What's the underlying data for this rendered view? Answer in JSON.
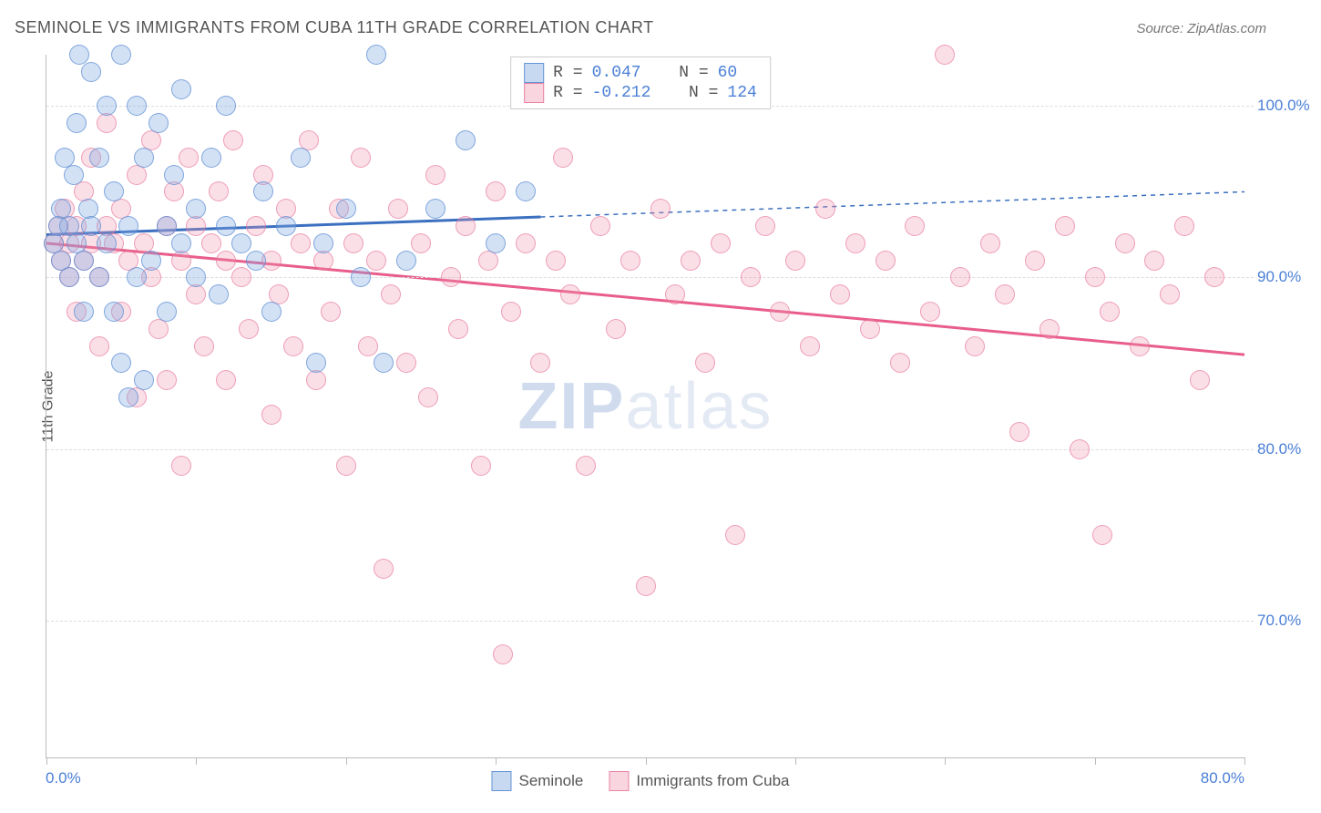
{
  "header": {
    "title": "SEMINOLE VS IMMIGRANTS FROM CUBA 11TH GRADE CORRELATION CHART",
    "source": "Source: ZipAtlas.com"
  },
  "axes": {
    "ylabel": "11th Grade",
    "xmin": 0.0,
    "xmax": 80.0,
    "ymin": 62.0,
    "ymax": 103.0,
    "xtick_label_min": "0.0%",
    "xtick_label_max": "80.0%",
    "xticks": [
      0,
      10,
      20,
      30,
      40,
      50,
      60,
      70,
      80
    ],
    "yticks": [
      70.0,
      80.0,
      90.0,
      100.0
    ],
    "ytick_labels": [
      "70.0%",
      "80.0%",
      "90.0%",
      "100.0%"
    ],
    "grid_color": "#dddddd",
    "axis_color": "#bbbbbb",
    "label_color": "#555555",
    "tick_label_color": "#4a7fd6",
    "label_fontsize": 16,
    "tick_label_fontsize": 17
  },
  "series": {
    "a": {
      "name": "Seminole",
      "color_fill": "rgba(130,170,225,0.35)",
      "color_stroke": "rgba(90,140,210,0.7)",
      "marker_size": 22,
      "R": "0.047",
      "N": "60",
      "trend": {
        "y_at_xmin": 92.5,
        "y_at_xmax": 95.0,
        "solid_until_x": 33.0,
        "color": "#3b6fc0",
        "width_solid": 3,
        "width_dash": 1.5
      },
      "points": [
        [
          0.5,
          92
        ],
        [
          0.8,
          93
        ],
        [
          1.0,
          94
        ],
        [
          1.0,
          91
        ],
        [
          1.2,
          97
        ],
        [
          1.5,
          93
        ],
        [
          1.5,
          90
        ],
        [
          1.8,
          96
        ],
        [
          2.0,
          92
        ],
        [
          2.0,
          99
        ],
        [
          2.2,
          103
        ],
        [
          2.5,
          91
        ],
        [
          2.5,
          88
        ],
        [
          2.8,
          94
        ],
        [
          3.0,
          93
        ],
        [
          3.0,
          102
        ],
        [
          3.5,
          97
        ],
        [
          3.5,
          90
        ],
        [
          4.0,
          100
        ],
        [
          4.0,
          92
        ],
        [
          4.5,
          88
        ],
        [
          4.5,
          95
        ],
        [
          5.0,
          103
        ],
        [
          5.0,
          85
        ],
        [
          5.5,
          93
        ],
        [
          6.0,
          90
        ],
        [
          6.0,
          100
        ],
        [
          6.5,
          97
        ],
        [
          6.5,
          84
        ],
        [
          7.0,
          91
        ],
        [
          7.5,
          99
        ],
        [
          8.0,
          93
        ],
        [
          8.0,
          88
        ],
        [
          8.5,
          96
        ],
        [
          9.0,
          92
        ],
        [
          9.0,
          101
        ],
        [
          10.0,
          90
        ],
        [
          10.0,
          94
        ],
        [
          11.0,
          97
        ],
        [
          11.5,
          89
        ],
        [
          12.0,
          93
        ],
        [
          12.0,
          100
        ],
        [
          13.0,
          92
        ],
        [
          14.0,
          91
        ],
        [
          14.5,
          95
        ],
        [
          15.0,
          88
        ],
        [
          16.0,
          93
        ],
        [
          17.0,
          97
        ],
        [
          18.0,
          85
        ],
        [
          18.5,
          92
        ],
        [
          20.0,
          94
        ],
        [
          21.0,
          90
        ],
        [
          22.0,
          103
        ],
        [
          24.0,
          91
        ],
        [
          26.0,
          94
        ],
        [
          28.0,
          98
        ],
        [
          30.0,
          92
        ],
        [
          32.0,
          95
        ],
        [
          22.5,
          85
        ],
        [
          5.5,
          83
        ]
      ]
    },
    "b": {
      "name": "Immigrants from Cuba",
      "color_fill": "rgba(240,150,175,0.30)",
      "color_stroke": "rgba(230,110,150,0.6)",
      "marker_size": 22,
      "R": "-0.212",
      "N": "124",
      "trend": {
        "y_at_xmin": 92.0,
        "y_at_xmax": 85.5,
        "solid_until_x": 80.0,
        "color": "#e85d8a",
        "width_solid": 3,
        "width_dash": 0
      },
      "points": [
        [
          0.5,
          92
        ],
        [
          0.8,
          93
        ],
        [
          1.0,
          91
        ],
        [
          1.2,
          94
        ],
        [
          1.5,
          92
        ],
        [
          1.5,
          90
        ],
        [
          2.0,
          93
        ],
        [
          2.0,
          88
        ],
        [
          2.5,
          95
        ],
        [
          2.5,
          91
        ],
        [
          3.0,
          92
        ],
        [
          3.0,
          97
        ],
        [
          3.5,
          90
        ],
        [
          3.5,
          86
        ],
        [
          4.0,
          93
        ],
        [
          4.0,
          99
        ],
        [
          4.5,
          92
        ],
        [
          5.0,
          88
        ],
        [
          5.0,
          94
        ],
        [
          5.5,
          91
        ],
        [
          6.0,
          96
        ],
        [
          6.0,
          83
        ],
        [
          6.5,
          92
        ],
        [
          7.0,
          90
        ],
        [
          7.0,
          98
        ],
        [
          7.5,
          87
        ],
        [
          8.0,
          93
        ],
        [
          8.0,
          84
        ],
        [
          8.5,
          95
        ],
        [
          9.0,
          79
        ],
        [
          9.0,
          91
        ],
        [
          9.5,
          97
        ],
        [
          10.0,
          89
        ],
        [
          10.0,
          93
        ],
        [
          10.5,
          86
        ],
        [
          11.0,
          92
        ],
        [
          11.5,
          95
        ],
        [
          12.0,
          84
        ],
        [
          12.0,
          91
        ],
        [
          12.5,
          98
        ],
        [
          13.0,
          90
        ],
        [
          13.5,
          87
        ],
        [
          14.0,
          93
        ],
        [
          14.5,
          96
        ],
        [
          15.0,
          82
        ],
        [
          15.0,
          91
        ],
        [
          15.5,
          89
        ],
        [
          16.0,
          94
        ],
        [
          16.5,
          86
        ],
        [
          17.0,
          92
        ],
        [
          17.5,
          98
        ],
        [
          18.0,
          84
        ],
        [
          18.5,
          91
        ],
        [
          19.0,
          88
        ],
        [
          19.5,
          94
        ],
        [
          20.0,
          79
        ],
        [
          20.5,
          92
        ],
        [
          21.0,
          97
        ],
        [
          21.5,
          86
        ],
        [
          22.0,
          91
        ],
        [
          22.5,
          73
        ],
        [
          23.0,
          89
        ],
        [
          23.5,
          94
        ],
        [
          24.0,
          85
        ],
        [
          25.0,
          92
        ],
        [
          25.5,
          83
        ],
        [
          26.0,
          96
        ],
        [
          27.0,
          90
        ],
        [
          27.5,
          87
        ],
        [
          28.0,
          93
        ],
        [
          29.0,
          79
        ],
        [
          29.5,
          91
        ],
        [
          30.0,
          95
        ],
        [
          30.5,
          68
        ],
        [
          31.0,
          88
        ],
        [
          32.0,
          92
        ],
        [
          33.0,
          85
        ],
        [
          34.0,
          91
        ],
        [
          34.5,
          97
        ],
        [
          35.0,
          89
        ],
        [
          36.0,
          79
        ],
        [
          37.0,
          93
        ],
        [
          38.0,
          87
        ],
        [
          39.0,
          91
        ],
        [
          40.0,
          72
        ],
        [
          41.0,
          94
        ],
        [
          42.0,
          89
        ],
        [
          43.0,
          91
        ],
        [
          44.0,
          85
        ],
        [
          45.0,
          92
        ],
        [
          46.0,
          75
        ],
        [
          47.0,
          90
        ],
        [
          48.0,
          93
        ],
        [
          49.0,
          88
        ],
        [
          50.0,
          91
        ],
        [
          51.0,
          86
        ],
        [
          52.0,
          94
        ],
        [
          53.0,
          89
        ],
        [
          54.0,
          92
        ],
        [
          55.0,
          87
        ],
        [
          56.0,
          91
        ],
        [
          57.0,
          85
        ],
        [
          58.0,
          93
        ],
        [
          59.0,
          88
        ],
        [
          60.0,
          103
        ],
        [
          61.0,
          90
        ],
        [
          62.0,
          86
        ],
        [
          63.0,
          92
        ],
        [
          64.0,
          89
        ],
        [
          65.0,
          81
        ],
        [
          66.0,
          91
        ],
        [
          67.0,
          87
        ],
        [
          68.0,
          93
        ],
        [
          69.0,
          80
        ],
        [
          70.0,
          90
        ],
        [
          70.5,
          75
        ],
        [
          71.0,
          88
        ],
        [
          72.0,
          92
        ],
        [
          73.0,
          86
        ],
        [
          74.0,
          91
        ],
        [
          75.0,
          89
        ],
        [
          76.0,
          93
        ],
        [
          77.0,
          84
        ],
        [
          78.0,
          90
        ]
      ]
    }
  },
  "legend_top": {
    "r_label": "R =",
    "n_label": "N ="
  },
  "watermark": {
    "bold": "ZIP",
    "rest": "atlas"
  },
  "background_color": "#ffffff"
}
